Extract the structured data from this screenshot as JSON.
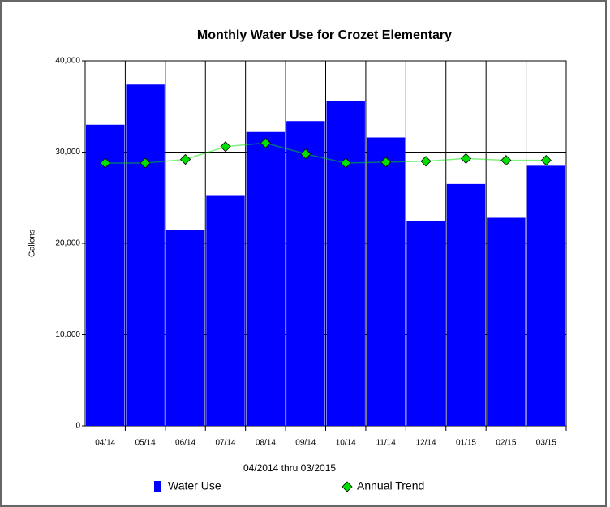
{
  "chart_data": {
    "type": "bar",
    "title": "Monthly Water Use for Crozet Elementary",
    "x_label": "04/2014 thru 03/2015",
    "y_label": "Gallons",
    "categories": [
      "04/14",
      "05/14",
      "06/14",
      "07/14",
      "08/14",
      "09/14",
      "10/14",
      "11/14",
      "12/14",
      "01/15",
      "02/15",
      "03/15"
    ],
    "series": [
      {
        "name": "Water Use",
        "type": "bar",
        "color": "#0000ff",
        "values": [
          33000,
          37400,
          21500,
          25200,
          32200,
          33400,
          35600,
          31600,
          22400,
          26500,
          22800,
          28500
        ]
      },
      {
        "name": "Annual Trend",
        "type": "line",
        "color": "#00e000",
        "values": [
          28800,
          28800,
          29200,
          30600,
          31000,
          29800,
          28800,
          28900,
          29000,
          29300,
          29100,
          29100
        ]
      }
    ],
    "ylim": [
      0,
      40000
    ],
    "yticks": [
      0,
      {
        "value": 10000,
        "label": "10,000"
      },
      {
        "value": 20000,
        "label": "20,000"
      },
      {
        "value": 30000,
        "label": "30,000"
      },
      {
        "value": 40000,
        "label": "40,000"
      }
    ],
    "grid": true
  }
}
